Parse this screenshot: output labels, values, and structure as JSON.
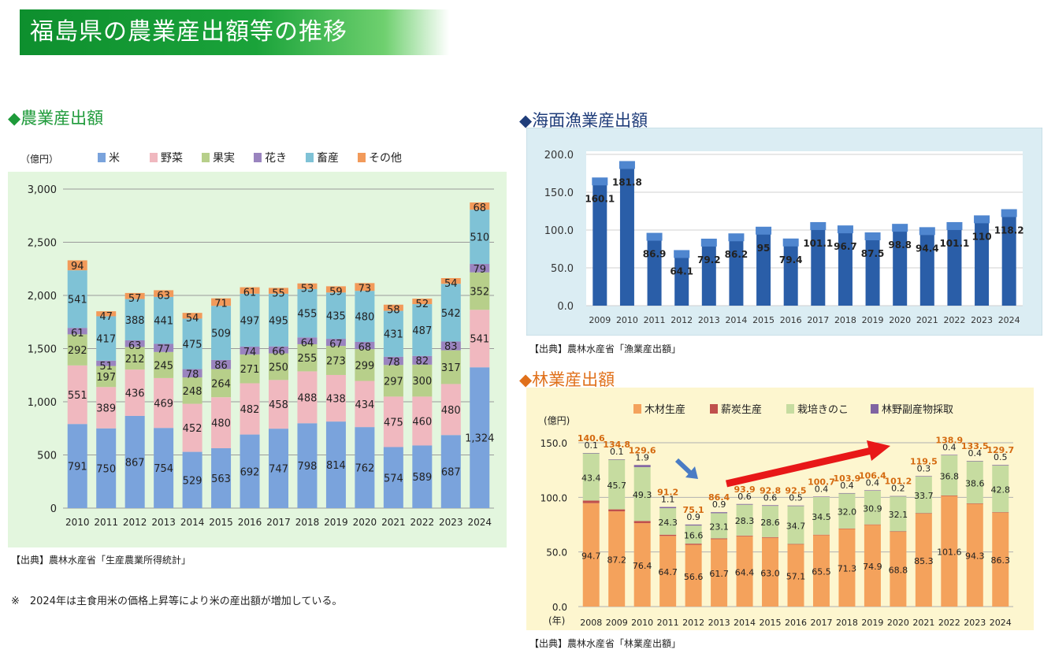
{
  "page": {
    "title": "福島県の農業産出額等の推移",
    "accent_green": "#1aa33a"
  },
  "agri": {
    "title": "◆農業産出額",
    "unit": "（億円）",
    "source": "【出典】農林水産省「生産農業所得統計」",
    "note": "※　2024年は主食用米の価格上昇等により米の産出額が増加している。"
  },
  "fish": {
    "title": "◆海面漁業産出額",
    "source": "【出典】農林水産省「漁業産出額」"
  },
  "forest": {
    "title": "◆林業産出額",
    "unit": "(億円)",
    "year_label": "(年)",
    "source": "【出典】農林水産省「林業産出額」"
  },
  "chart_data": [
    {
      "id": "agri",
      "type": "bar",
      "stacked": true,
      "categories": [
        "2010",
        "2011",
        "2012",
        "2013",
        "2014",
        "2015",
        "2016",
        "2017",
        "2018",
        "2019",
        "2020",
        "2021",
        "2022",
        "2023",
        "2024"
      ],
      "ylim": [
        0,
        3000
      ],
      "yticks": [
        0,
        500,
        1000,
        1500,
        2000,
        2500,
        3000
      ],
      "ytick_labels": [
        "0",
        "500",
        "1,000",
        "1,500",
        "2,000",
        "2,500",
        "3,000"
      ],
      "legend_position": "top",
      "grid": true,
      "series": [
        {
          "name": "米",
          "color": "#7aa3dc",
          "values": [
            791,
            750,
            867,
            754,
            529,
            563,
            692,
            747,
            798,
            814,
            762,
            574,
            589,
            687,
            1324
          ],
          "labels": [
            "791",
            "750",
            "867",
            "754",
            "529",
            "563",
            "692",
            "747",
            "798",
            "814",
            "762",
            "574",
            "589",
            "687",
            "1,324"
          ]
        },
        {
          "name": "野菜",
          "color": "#f0b8bf",
          "values": [
            551,
            389,
            436,
            469,
            452,
            480,
            482,
            458,
            488,
            438,
            434,
            475,
            460,
            480,
            541
          ]
        },
        {
          "name": "果実",
          "color": "#b7cf8a",
          "values": [
            292,
            197,
            212,
            245,
            248,
            264,
            271,
            250,
            255,
            273,
            299,
            297,
            300,
            317,
            352
          ]
        },
        {
          "name": "花き",
          "color": "#9a84bf",
          "values": [
            61,
            51,
            63,
            77,
            78,
            86,
            74,
            66,
            64,
            67,
            68,
            78,
            82,
            83,
            79
          ]
        },
        {
          "name": "畜産",
          "color": "#7fc2d6",
          "values": [
            541,
            417,
            388,
            441,
            475,
            509,
            497,
            495,
            455,
            435,
            480,
            431,
            487,
            542,
            510
          ]
        },
        {
          "name": "その他",
          "color": "#f29a5a",
          "values": [
            94,
            47,
            57,
            63,
            54,
            71,
            61,
            55,
            53,
            59,
            73,
            58,
            52,
            54,
            68
          ]
        }
      ]
    },
    {
      "id": "fish",
      "type": "bar",
      "categories": [
        "2009",
        "2010",
        "2011",
        "2012",
        "2013",
        "2014",
        "2015",
        "2016",
        "2017",
        "2018",
        "2019",
        "2020",
        "2021",
        "2022",
        "2023",
        "2024"
      ],
      "values": [
        160.1,
        181.8,
        86.9,
        64.1,
        79.2,
        86.2,
        95,
        79.4,
        101.1,
        96.7,
        87.5,
        98.8,
        94.4,
        101.1,
        110,
        118.2
      ],
      "labels": [
        "160.1",
        "181.8",
        "86.9",
        "64.1",
        "79.2",
        "86.2",
        "95",
        "79.4",
        "101.1",
        "96.7",
        "87.5",
        "98.8",
        "94.4",
        "101.1",
        "110",
        "118.2"
      ],
      "ylim": [
        0,
        200
      ],
      "yticks": [
        0,
        50,
        100,
        150,
        200
      ],
      "ytick_labels": [
        "0.0",
        "50.0",
        "100.0",
        "150.0",
        "200.0"
      ],
      "grid": true,
      "color": "#2a5ea8"
    },
    {
      "id": "forest",
      "type": "bar",
      "stacked": true,
      "categories": [
        "2008",
        "2009",
        "2010",
        "2011",
        "2012",
        "2013",
        "2014",
        "2015",
        "2016",
        "2017",
        "2018",
        "2019",
        "2020",
        "2021",
        "2022",
        "2023",
        "2024"
      ],
      "ylim": [
        0,
        150
      ],
      "yticks": [
        0,
        50,
        100,
        150
      ],
      "ytick_labels": [
        "0.0",
        "50.0",
        "100.0",
        "150.0"
      ],
      "legend_position": "top",
      "grid": true,
      "totals": [
        140.6,
        134.8,
        129.6,
        91.2,
        75.1,
        86.4,
        93.9,
        92.8,
        92.5,
        100.7,
        103.9,
        106.4,
        101.2,
        119.5,
        138.9,
        133.5,
        129.7
      ],
      "series": [
        {
          "name": "木材生産",
          "color": "#f4a25c",
          "values": [
            94.7,
            87.2,
            76.4,
            64.7,
            56.6,
            61.7,
            64.4,
            63.0,
            57.1,
            65.5,
            71.3,
            74.9,
            68.8,
            85.3,
            101.6,
            94.3,
            86.3
          ]
        },
        {
          "name": "薪炭生産",
          "color": "#c0504d",
          "values": [
            2.4,
            1.8,
            2.0,
            1.1,
            1.0,
            0.7,
            0.6,
            0.6,
            0.2,
            0.3,
            0.2,
            0.3,
            0.1,
            0.2,
            0.1,
            0.1,
            0.1
          ]
        },
        {
          "name": "栽培きのこ",
          "color": "#c6dca0",
          "values": [
            43.4,
            45.7,
            49.3,
            24.3,
            16.6,
            23.1,
            28.3,
            28.6,
            34.7,
            34.5,
            32.0,
            30.9,
            32.1,
            33.7,
            36.8,
            38.6,
            42.8
          ]
        },
        {
          "name": "林野副産物採取",
          "color": "#8064a2",
          "values": [
            0.1,
            0.1,
            1.9,
            1.1,
            0.9,
            0.9,
            0.6,
            0.6,
            0.5,
            0.4,
            0.4,
            0.4,
            0.2,
            0.3,
            0.4,
            0.4,
            0.5
          ]
        }
      ]
    }
  ]
}
